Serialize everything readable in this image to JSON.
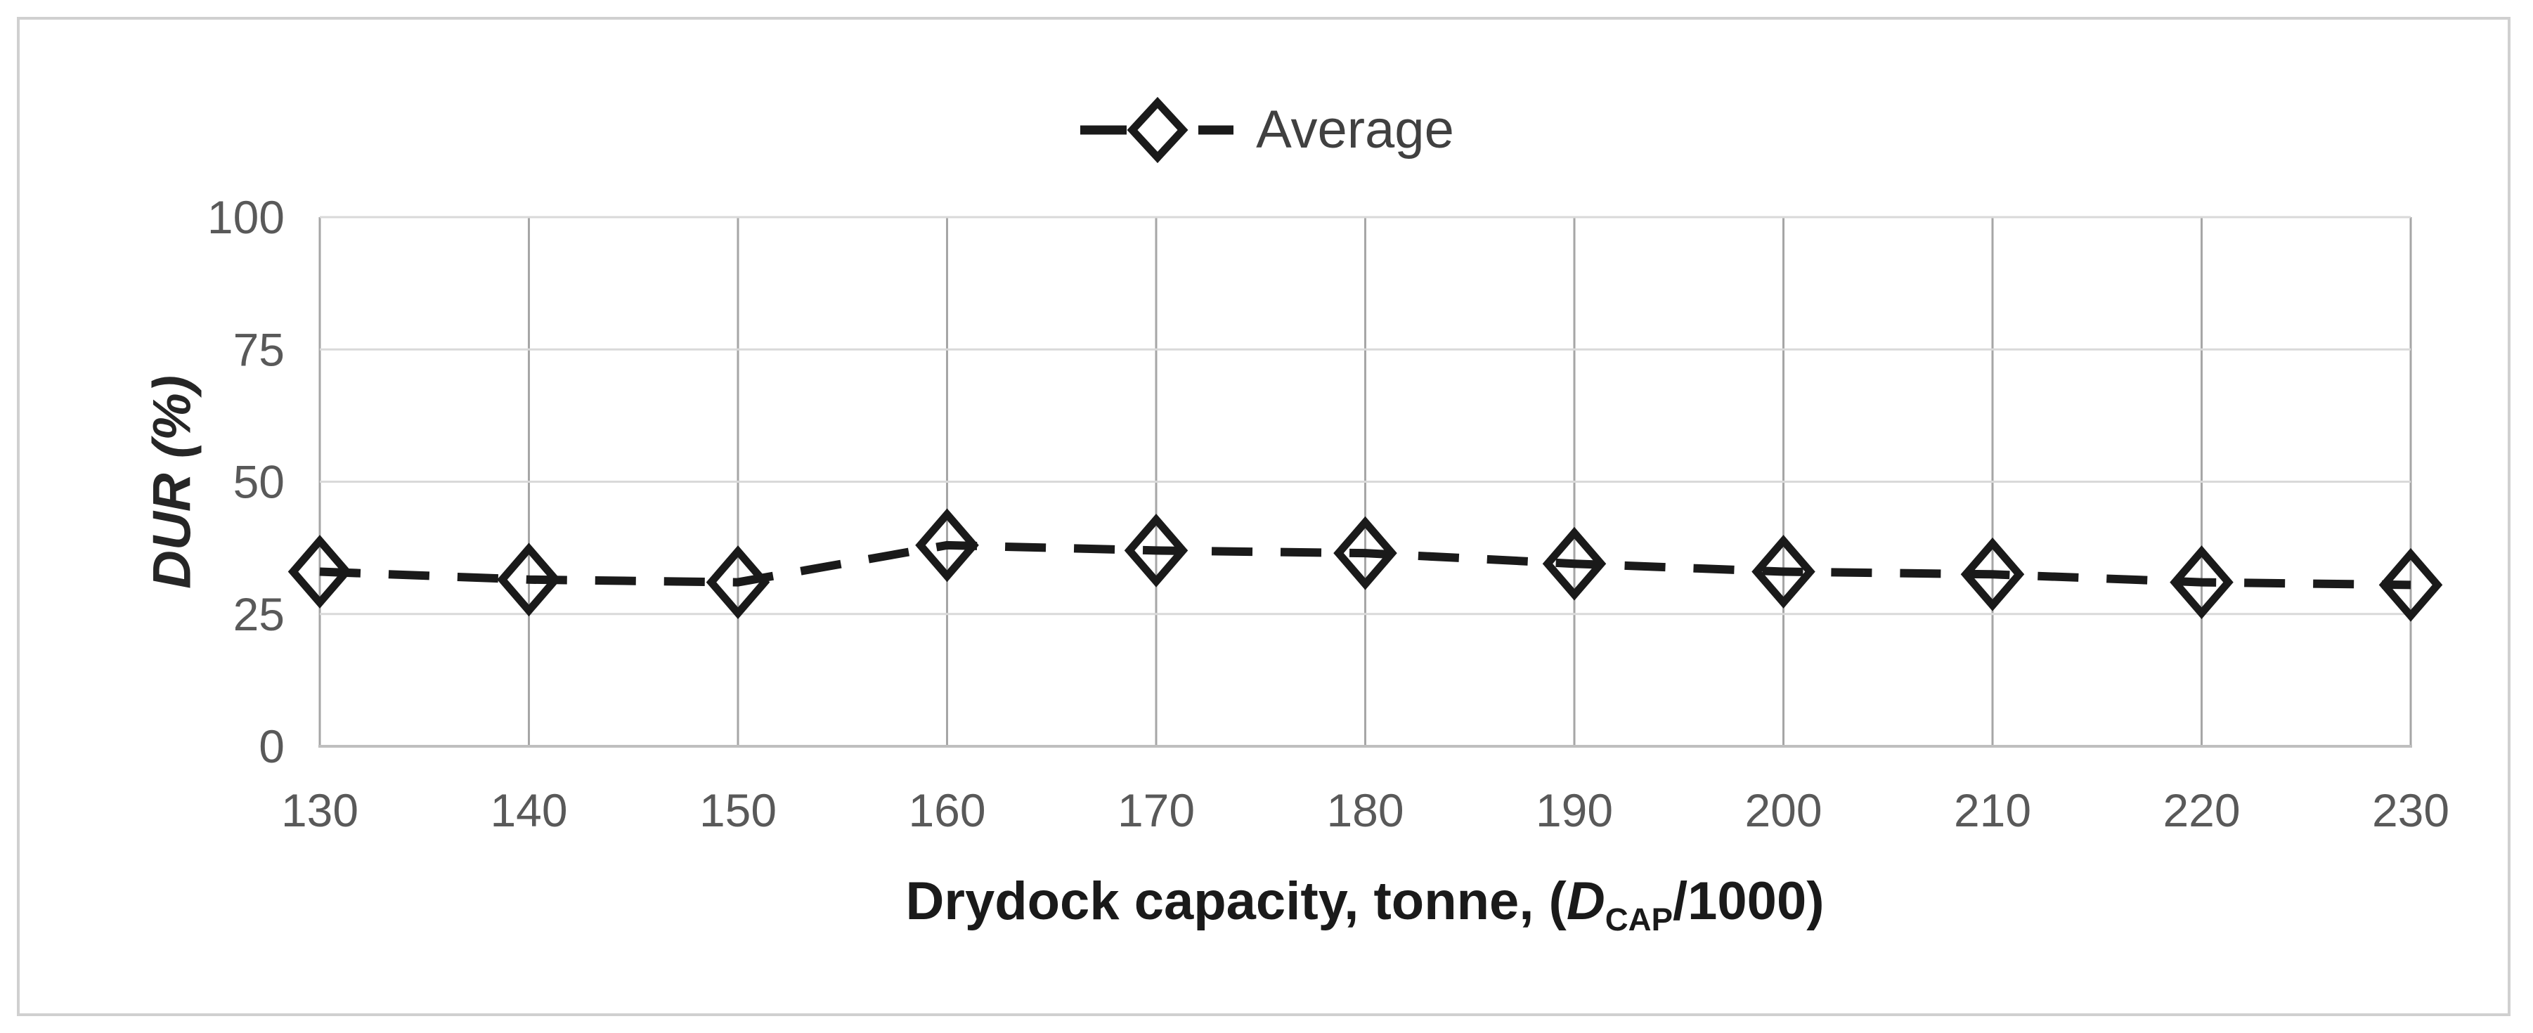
{
  "chart_data": {
    "type": "line",
    "categories": [
      130,
      140,
      150,
      160,
      170,
      180,
      190,
      200,
      210,
      220,
      230
    ],
    "series": [
      {
        "name": "Average",
        "values": [
          33,
          31.5,
          31,
          38,
          37,
          36.5,
          34.5,
          33,
          32.5,
          31,
          30.5
        ],
        "line_style": "dashed",
        "marker": "open-diamond",
        "color": "#1a1a1a"
      }
    ],
    "xlabel": "Drydock capacity, tonne, (DCAP/1000)",
    "xlabel_parts": {
      "prefix": "Drydock capacity, tonne, (",
      "variable": "D",
      "subscript": "CAP",
      "suffix": "/1000)"
    },
    "ylabel": "DUR (%)",
    "ylim": [
      0,
      100
    ],
    "yticks": [
      0,
      25,
      50,
      75,
      100
    ],
    "grid": true,
    "legend_position": "top-center"
  },
  "colors": {
    "series_line": "#1a1a1a",
    "marker_fill": "none",
    "grid_horizontal": "#d9d9d9",
    "grid_vertical": "#a6a6a6",
    "axis_line": "#bfbfbf",
    "tick_label": "#595959",
    "axis_title": "#1a1a1a",
    "legend_text": "#404040",
    "figure_border": "#d0d0d0",
    "background": "#ffffff"
  }
}
